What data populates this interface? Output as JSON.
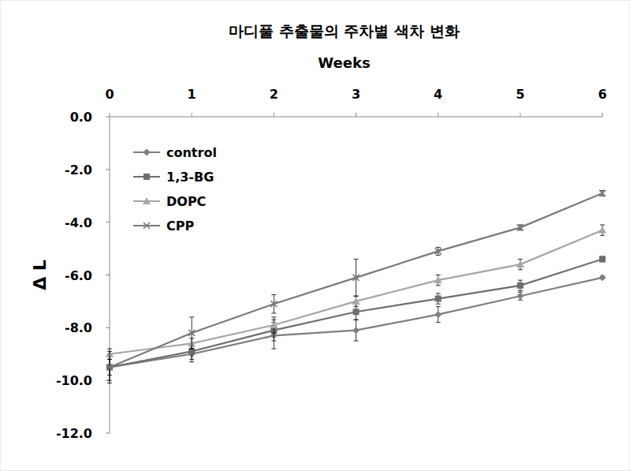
{
  "chart_data": {
    "type": "line",
    "title": "마디풀 추출물의 주차별 색차 변화",
    "xlabel": "Weeks",
    "ylabel": "Δ L",
    "x": [
      0,
      1,
      2,
      3,
      4,
      5,
      6
    ],
    "xlim": [
      0,
      6
    ],
    "xticks": [
      0,
      1,
      2,
      3,
      4,
      5,
      6
    ],
    "ylim": [
      -12,
      0
    ],
    "yticks": [
      {
        "value": 0,
        "label": "0.0"
      },
      {
        "value": -2,
        "label": "-2.0"
      },
      {
        "value": -4,
        "label": "-4.0"
      },
      {
        "value": -6,
        "label": "-6.0"
      },
      {
        "value": -8,
        "label": "-8.0"
      },
      {
        "value": -10,
        "label": "-10.0"
      },
      {
        "value": -12,
        "label": "-12.0"
      }
    ],
    "grid": false,
    "legend": "upper left",
    "series": [
      {
        "name": "control",
        "color": "#7f7f7f",
        "marker": "diamond",
        "values": [
          -9.5,
          -9.0,
          -8.3,
          -8.1,
          -7.5,
          -6.8,
          -6.1
        ],
        "errors": [
          0.5,
          0.3,
          0.5,
          0.4,
          0.3,
          0.15,
          0.05
        ]
      },
      {
        "name": "1,3-BG",
        "color": "#6e6e6e",
        "marker": "square",
        "values": [
          -9.5,
          -8.9,
          -8.1,
          -7.4,
          -6.9,
          -6.4,
          -5.4
        ],
        "errors": [
          0.3,
          0.3,
          0.4,
          0.3,
          0.2,
          0.2,
          0.1
        ]
      },
      {
        "name": "DOPC",
        "color": "#a6a6a6",
        "marker": "triangle",
        "values": [
          -9.0,
          -8.6,
          -7.9,
          -7.0,
          -6.2,
          -5.6,
          -4.3
        ],
        "errors": [
          0.2,
          0.2,
          0.3,
          0.2,
          0.2,
          0.2,
          0.2
        ]
      },
      {
        "name": "CPP",
        "color": "#7a7a7a",
        "marker": "x",
        "values": [
          -9.5,
          -8.2,
          -7.1,
          -6.1,
          -5.1,
          -4.2,
          -2.9
        ],
        "errors": [
          0.6,
          0.6,
          0.35,
          0.7,
          0.15,
          0.1,
          0.1
        ]
      }
    ]
  }
}
